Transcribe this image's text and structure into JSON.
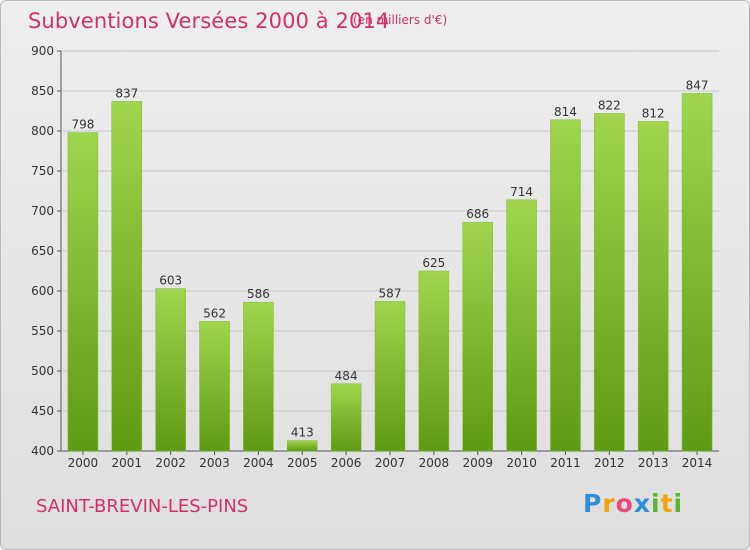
{
  "header": {
    "title": "Subventions Versées 2000 à 2014",
    "unit": "(en milliers d'€)"
  },
  "footer": {
    "city": "SAINT-BREVIN-LES-PINS",
    "logo": "Proxiti"
  },
  "colors": {
    "title": "#d2306a",
    "bar_light": "#9fd64e",
    "bar_dark": "#5e9a12",
    "grid": "#c8c8c8"
  },
  "chart_data": {
    "type": "bar",
    "title": "Subventions Versées 2000 à 2014",
    "subtitle": "(en milliers d'€)",
    "categories": [
      "2000",
      "2001",
      "2002",
      "2003",
      "2004",
      "2005",
      "2006",
      "2007",
      "2008",
      "2009",
      "2010",
      "2011",
      "2012",
      "2013",
      "2014"
    ],
    "values": [
      798,
      837,
      603,
      562,
      586,
      413,
      484,
      587,
      625,
      686,
      714,
      814,
      822,
      812,
      847
    ],
    "ylim": [
      400,
      900
    ],
    "yticks": [
      400,
      450,
      500,
      550,
      600,
      650,
      700,
      750,
      800,
      850,
      900
    ],
    "grid": true,
    "xlabel": "",
    "ylabel": ""
  }
}
